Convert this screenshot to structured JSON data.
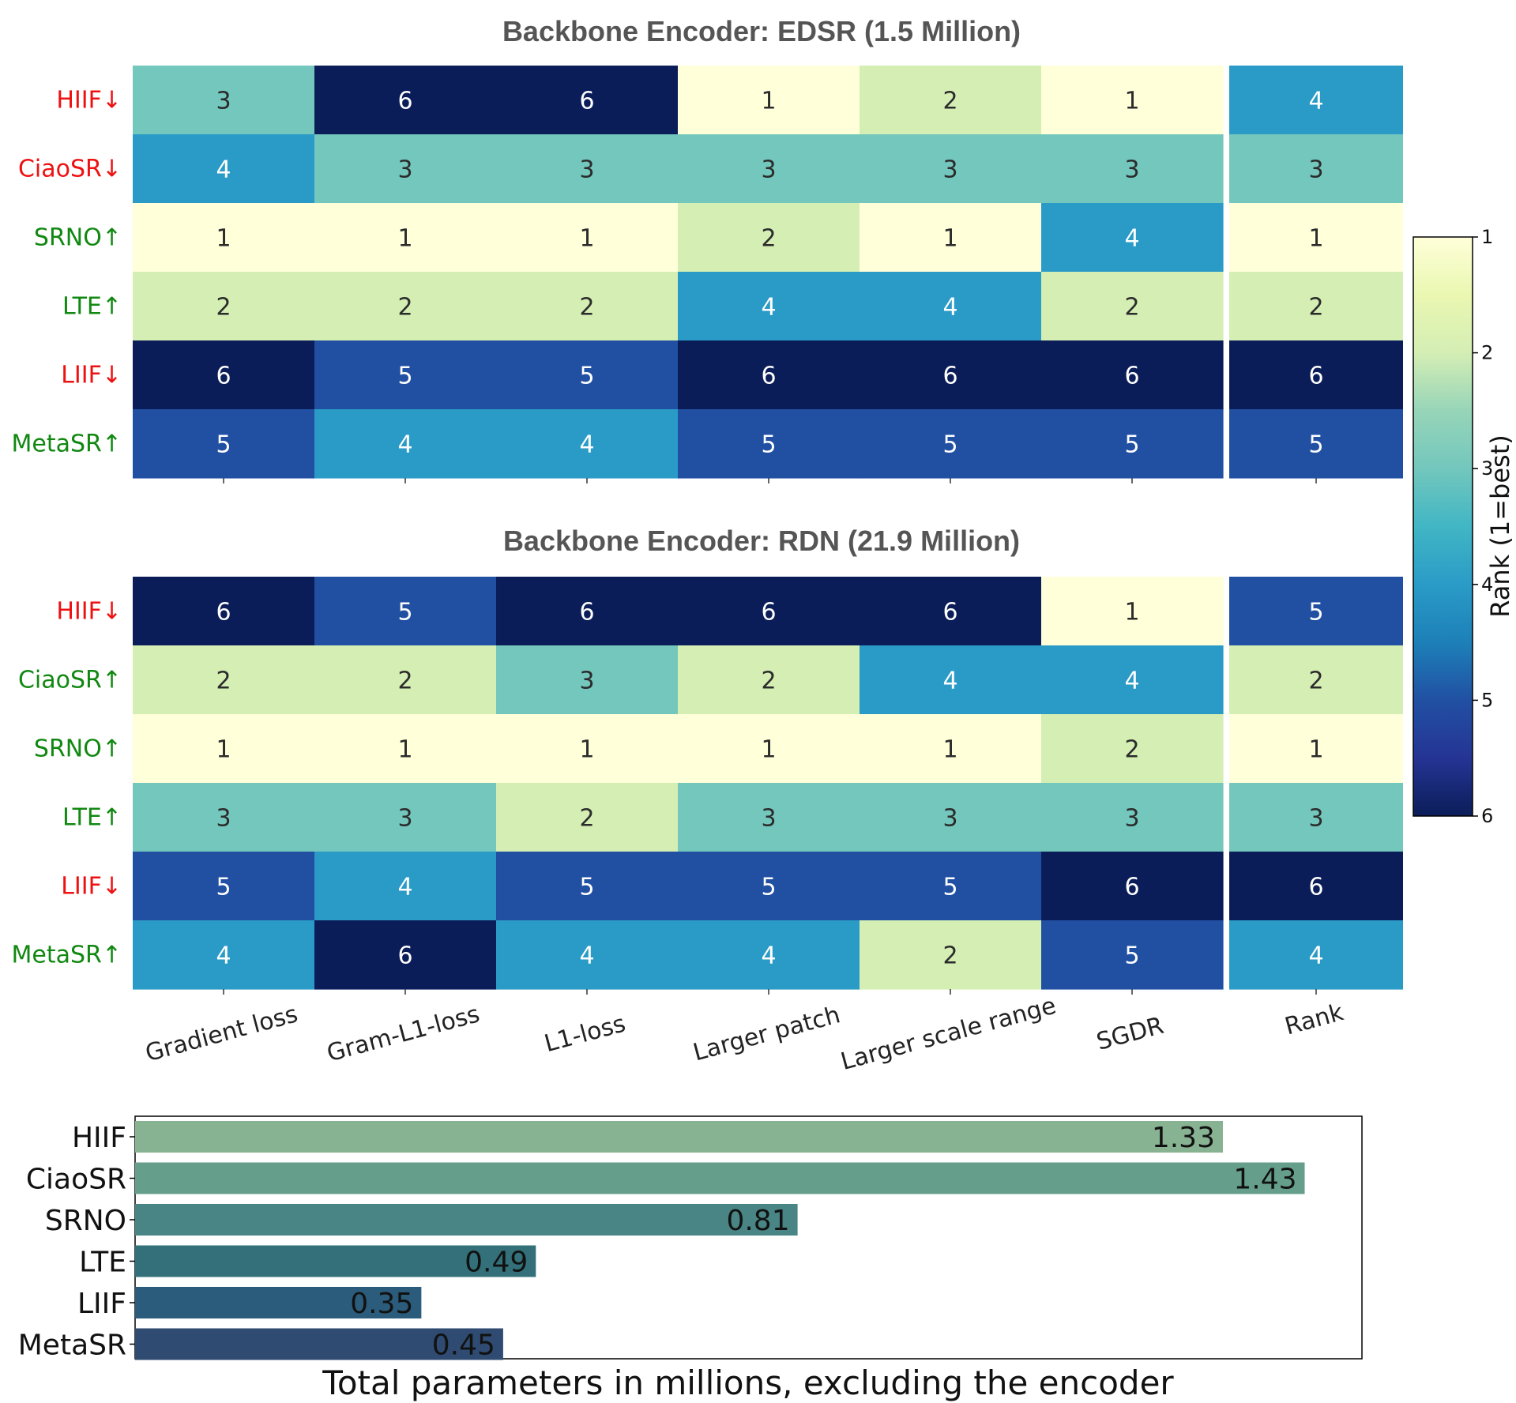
{
  "chart_data": [
    {
      "type": "heatmap",
      "title": "Backbone Encoder: EDSR (1.5 Million)",
      "rows": [
        {
          "name": "HIIF↓",
          "trend": "down",
          "color": "#ee1111"
        },
        {
          "name": "CiaoSR↓",
          "trend": "down",
          "color": "#ee1111"
        },
        {
          "name": "SRNO↑",
          "trend": "up",
          "color": "#118811"
        },
        {
          "name": "LTE↑",
          "trend": "up",
          "color": "#118811"
        },
        {
          "name": "LIIF↓",
          "trend": "down",
          "color": "#ee1111"
        },
        {
          "name": "MetaSR↑",
          "trend": "up",
          "color": "#118811"
        }
      ],
      "columns": [
        "Gradient loss",
        "Gram-L1-loss",
        "L1-loss",
        "Larger patch",
        "Larger scale range",
        "SGDR"
      ],
      "values": [
        [
          3,
          6,
          6,
          1,
          2,
          1
        ],
        [
          4,
          3,
          3,
          3,
          3,
          3
        ],
        [
          1,
          1,
          1,
          2,
          1,
          4
        ],
        [
          2,
          2,
          2,
          4,
          4,
          2
        ],
        [
          6,
          5,
          5,
          6,
          6,
          6
        ],
        [
          5,
          4,
          4,
          5,
          5,
          5
        ]
      ],
      "rank_column": "Rank",
      "rank": [
        4,
        3,
        1,
        2,
        6,
        5
      ]
    },
    {
      "type": "heatmap",
      "title": "Backbone Encoder: RDN (21.9 Million)",
      "rows": [
        {
          "name": "HIIF↓",
          "trend": "down",
          "color": "#ee1111"
        },
        {
          "name": "CiaoSR↑",
          "trend": "up",
          "color": "#118811"
        },
        {
          "name": "SRNO↑",
          "trend": "up",
          "color": "#118811"
        },
        {
          "name": "LTE↑",
          "trend": "up",
          "color": "#118811"
        },
        {
          "name": "LIIF↓",
          "trend": "down",
          "color": "#ee1111"
        },
        {
          "name": "MetaSR↑",
          "trend": "up",
          "color": "#118811"
        }
      ],
      "columns": [
        "Gradient loss",
        "Gram-L1-loss",
        "L1-loss",
        "Larger patch",
        "Larger scale range",
        "SGDR"
      ],
      "values": [
        [
          6,
          5,
          6,
          6,
          6,
          1
        ],
        [
          2,
          2,
          3,
          2,
          4,
          4
        ],
        [
          1,
          1,
          1,
          1,
          1,
          2
        ],
        [
          3,
          3,
          2,
          3,
          3,
          3
        ],
        [
          5,
          4,
          5,
          5,
          5,
          6
        ],
        [
          4,
          6,
          4,
          4,
          2,
          5
        ]
      ],
      "rank_column": "Rank",
      "rank": [
        5,
        2,
        1,
        3,
        6,
        4
      ]
    },
    {
      "type": "bar",
      "orientation": "horizontal",
      "categories": [
        "HIIF",
        "CiaoSR",
        "SRNO",
        "LTE",
        "LIIF",
        "MetaSR"
      ],
      "values": [
        1.33,
        1.43,
        0.81,
        0.49,
        0.35,
        0.45
      ],
      "value_labels": [
        "1.33",
        "1.43",
        "0.81",
        "0.49",
        "0.35",
        "0.45"
      ],
      "xlabel": "Total parameters in millions, excluding the encoder",
      "xlim": [
        0,
        1.5
      ],
      "colors": [
        "#88b393",
        "#659f8c",
        "#4a8585",
        "#337079",
        "#2c5c7b",
        "#2f4b71"
      ]
    }
  ],
  "colorbar": {
    "label": "Rank (1=best)",
    "ticks": [
      "1",
      "2",
      "3",
      "4",
      "5",
      "6"
    ],
    "range": [
      1,
      6
    ],
    "colors": {
      "1": "#ffffd9",
      "2": "#d4eeb4",
      "3": "#73c7bd",
      "4": "#2a9bc7",
      "5": "#2150a3",
      "6": "#0b1d59"
    },
    "gradient": [
      "#ffffd9",
      "#eaf7b1",
      "#d4eeb4",
      "#97d5b8",
      "#73c7bd",
      "#41b6c4",
      "#2a9bc7",
      "#1d80b8",
      "#2150a3",
      "#253494",
      "#0b1d59"
    ]
  }
}
